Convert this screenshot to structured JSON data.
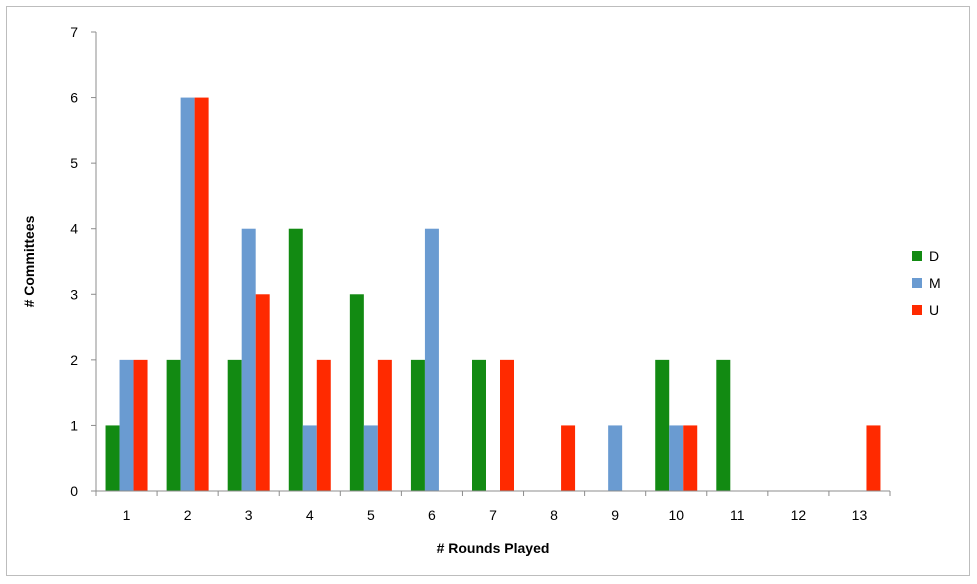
{
  "chart_data": {
    "type": "bar",
    "title": "",
    "xlabel": "# Rounds Played",
    "ylabel": "# Committees",
    "categories": [
      "1",
      "2",
      "3",
      "4",
      "5",
      "6",
      "7",
      "8",
      "9",
      "10",
      "11",
      "12",
      "13"
    ],
    "series": [
      {
        "name": "D",
        "color": "#128a12",
        "values": [
          1,
          2,
          2,
          4,
          3,
          2,
          2,
          0,
          0,
          2,
          2,
          0,
          0
        ]
      },
      {
        "name": "M",
        "color": "#6a9bd1",
        "values": [
          2,
          6,
          4,
          1,
          1,
          4,
          0,
          0,
          1,
          1,
          0,
          0,
          0
        ]
      },
      {
        "name": "U",
        "color": "#ff2a00",
        "values": [
          2,
          6,
          3,
          2,
          2,
          0,
          2,
          1,
          0,
          1,
          0,
          0,
          1
        ]
      }
    ],
    "ylim": [
      0,
      7
    ],
    "yticks": [
      0,
      1,
      2,
      3,
      4,
      5,
      6,
      7
    ],
    "grid": false,
    "legend_position": "right"
  }
}
